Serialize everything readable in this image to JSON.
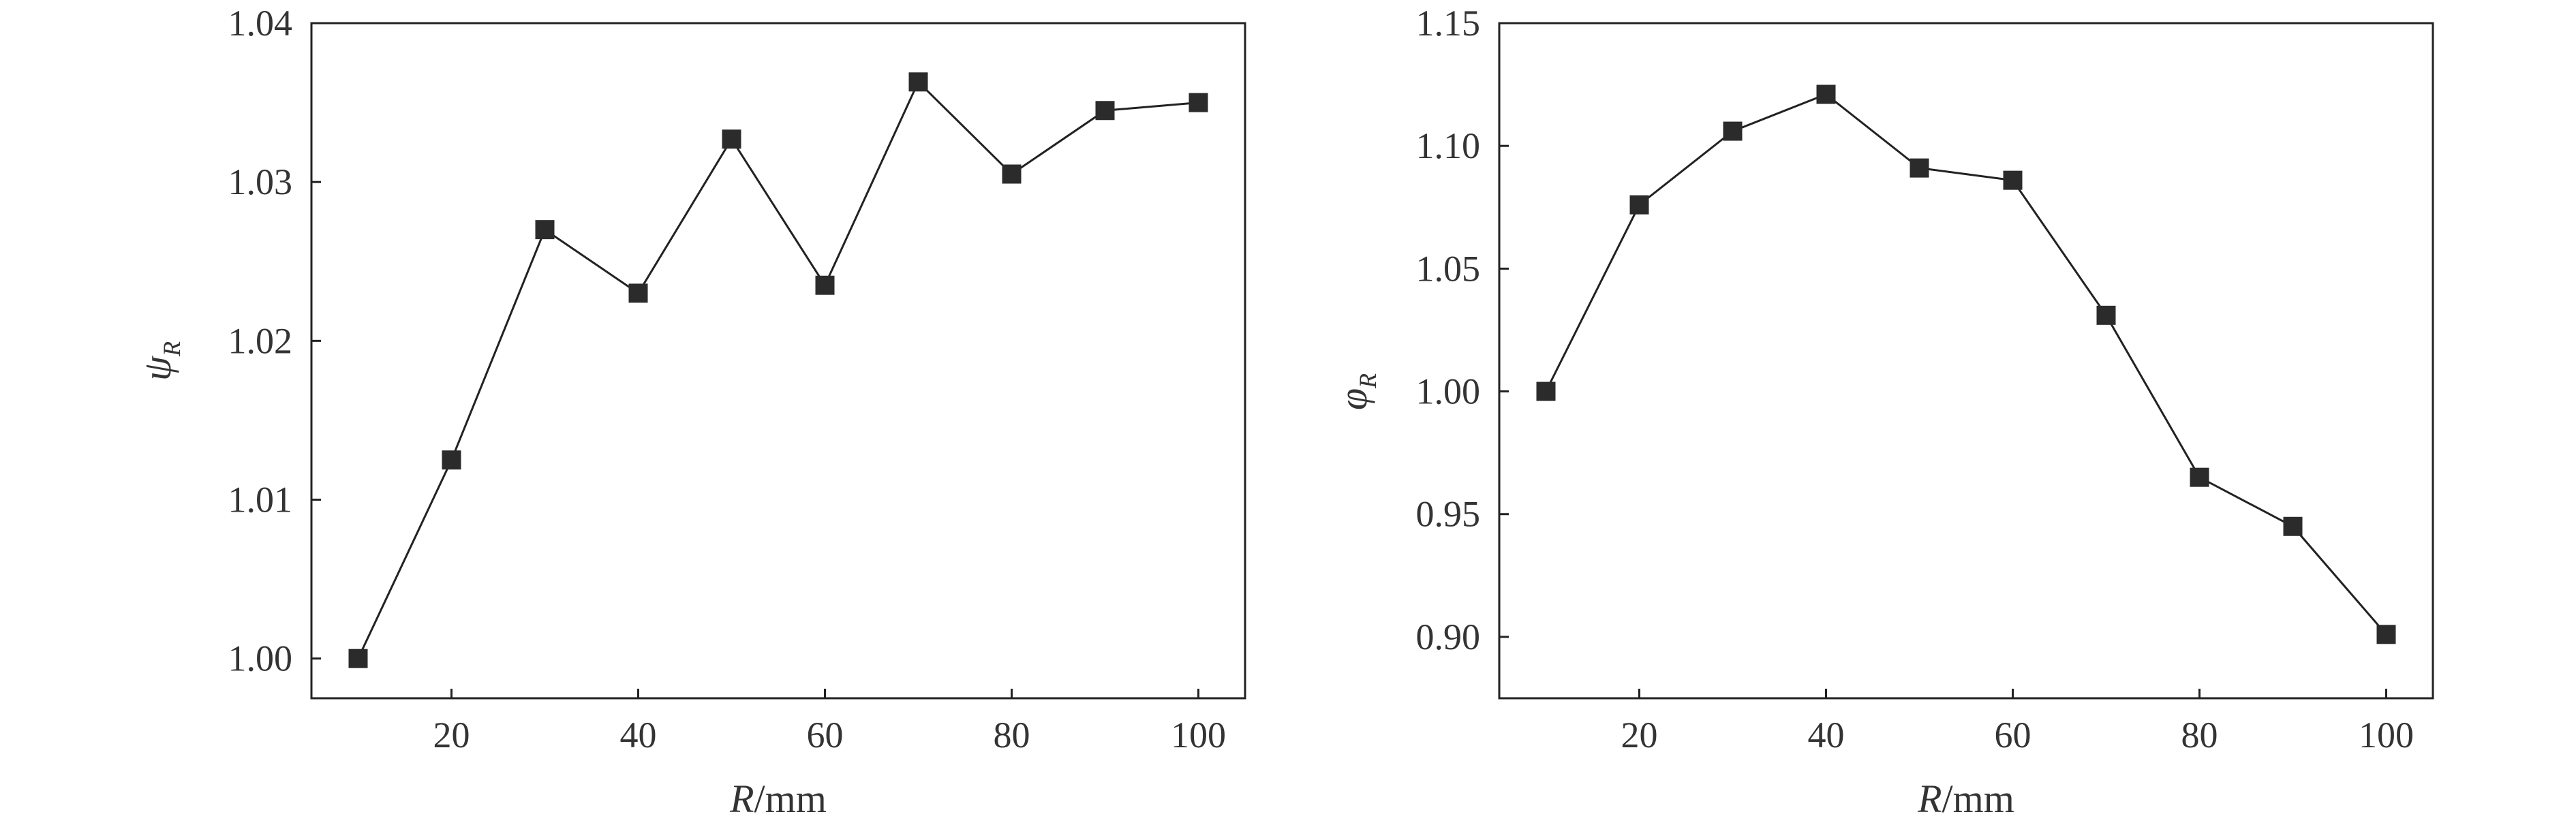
{
  "chart_data": [
    {
      "type": "line",
      "title": "",
      "xlabel_symbol": "R",
      "xlabel_unit": "/mm",
      "ylabel_symbol": "ψ",
      "ylabel_sub": "R",
      "xlim": [
        5,
        105
      ],
      "ylim": [
        0.9975,
        1.04
      ],
      "xticks": [
        20,
        40,
        60,
        80,
        100
      ],
      "yticks": [
        1.0,
        1.01,
        1.02,
        1.03,
        1.04
      ],
      "ytick_labels": [
        "1.00",
        "1.01",
        "1.02",
        "1.03",
        "1.04"
      ],
      "grid": false,
      "series": [
        {
          "marker": "square",
          "color": "#2b2b2b",
          "x": [
            10,
            20,
            30,
            40,
            50,
            60,
            70,
            80,
            90,
            100
          ],
          "y": [
            1.0,
            1.0125,
            1.027,
            1.023,
            1.0327,
            1.0235,
            1.0363,
            1.0305,
            1.0345,
            1.035
          ]
        }
      ]
    },
    {
      "type": "line",
      "title": "",
      "xlabel_symbol": "R",
      "xlabel_unit": "/mm",
      "ylabel_symbol": "φ",
      "ylabel_sub": "R",
      "xlim": [
        5,
        105
      ],
      "ylim": [
        0.875,
        1.15
      ],
      "xticks": [
        20,
        40,
        60,
        80,
        100
      ],
      "yticks": [
        0.9,
        0.95,
        1.0,
        1.05,
        1.1,
        1.15
      ],
      "ytick_labels": [
        "0.90",
        "0.95",
        "1.00",
        "1.05",
        "1.10",
        "1.15"
      ],
      "grid": false,
      "series": [
        {
          "marker": "square",
          "color": "#2b2b2b",
          "x": [
            10,
            20,
            30,
            40,
            50,
            60,
            70,
            80,
            90,
            100
          ],
          "y": [
            1.0,
            1.076,
            1.106,
            1.121,
            1.091,
            1.086,
            1.031,
            0.965,
            0.945,
            0.901
          ]
        }
      ]
    }
  ]
}
